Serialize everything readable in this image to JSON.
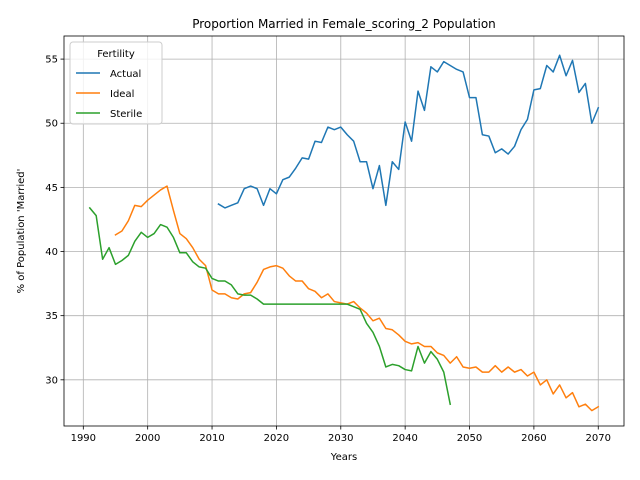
{
  "chart_data": {
    "type": "line",
    "title": "Proportion Married in Female_scoring_2 Population",
    "xlabel": "Years",
    "ylabel": "% of Population 'Married'",
    "xlim": [
      1987,
      2074
    ],
    "ylim": [
      26.4,
      56.8
    ],
    "xticks": [
      1990,
      2000,
      2010,
      2020,
      2030,
      2040,
      2050,
      2060,
      2070
    ],
    "yticks": [
      30,
      35,
      40,
      45,
      50,
      55
    ],
    "grid": true,
    "legend": {
      "title": "Fertility",
      "placement": "top-left"
    },
    "series": [
      {
        "name": "Actual",
        "color": "#1f77b4",
        "x": [
          2011,
          2012,
          2013,
          2014,
          2015,
          2016,
          2017,
          2018,
          2019,
          2020,
          2021,
          2022,
          2023,
          2024,
          2025,
          2026,
          2027,
          2028,
          2029,
          2030,
          2031,
          2032,
          2033,
          2034,
          2035,
          2036,
          2037,
          2038,
          2039,
          2040,
          2041,
          2042,
          2043,
          2044,
          2045,
          2046,
          2047,
          2048,
          2049,
          2050,
          2051,
          2052,
          2053,
          2054,
          2055,
          2056,
          2057,
          2058,
          2059,
          2060,
          2061,
          2062,
          2063,
          2064,
          2065,
          2066,
          2067,
          2068,
          2069,
          2070
        ],
        "y": [
          43.7,
          43.4,
          43.6,
          43.8,
          44.9,
          45.1,
          44.9,
          43.6,
          44.9,
          44.5,
          45.6,
          45.8,
          46.5,
          47.3,
          47.2,
          48.6,
          48.5,
          49.7,
          49.5,
          49.7,
          49.1,
          48.6,
          47.0,
          47.0,
          44.9,
          46.7,
          43.6,
          47.0,
          46.4,
          50.1,
          48.6,
          52.5,
          51.0,
          54.4,
          54.0,
          54.8,
          54.5,
          54.2,
          54.0,
          52.0,
          52.0,
          49.1,
          49.0,
          47.7,
          48.0,
          47.6,
          48.2,
          49.5,
          50.3,
          52.6,
          52.7,
          54.5,
          54.0,
          55.3,
          53.7,
          54.9,
          52.4,
          53.1,
          50.0,
          51.2
        ]
      },
      {
        "name": "Ideal",
        "color": "#ff7f0e",
        "x": [
          1995,
          1996,
          1997,
          1998,
          1999,
          2000,
          2001,
          2002,
          2003,
          2004,
          2005,
          2006,
          2007,
          2008,
          2009,
          2010,
          2011,
          2012,
          2013,
          2014,
          2015,
          2016,
          2017,
          2018,
          2019,
          2020,
          2021,
          2022,
          2023,
          2024,
          2025,
          2026,
          2027,
          2028,
          2029,
          2030,
          2031,
          2032,
          2033,
          2034,
          2035,
          2036,
          2037,
          2038,
          2039,
          2040,
          2041,
          2042,
          2043,
          2044,
          2045,
          2046,
          2047,
          2048,
          2049,
          2050,
          2051,
          2052,
          2053,
          2054,
          2055,
          2056,
          2057,
          2058,
          2059,
          2060,
          2061,
          2062,
          2063,
          2064,
          2065,
          2066,
          2067,
          2068,
          2069,
          2070
        ],
        "y": [
          41.3,
          41.6,
          42.4,
          43.6,
          43.5,
          44.0,
          44.4,
          44.8,
          45.1,
          43.2,
          41.4,
          41.0,
          40.3,
          39.4,
          38.9,
          37.0,
          36.7,
          36.7,
          36.4,
          36.3,
          36.7,
          36.8,
          37.6,
          38.6,
          38.8,
          38.9,
          38.7,
          38.1,
          37.7,
          37.7,
          37.1,
          36.9,
          36.4,
          36.7,
          36.1,
          36.0,
          35.9,
          36.1,
          35.6,
          35.2,
          34.6,
          34.8,
          34.0,
          33.9,
          33.5,
          33.0,
          32.8,
          32.9,
          32.6,
          32.6,
          32.1,
          31.9,
          31.3,
          31.8,
          31.0,
          30.9,
          31.0,
          30.6,
          30.6,
          31.1,
          30.6,
          31.0,
          30.6,
          30.8,
          30.3,
          30.6,
          29.6,
          30.0,
          28.9,
          29.6,
          28.6,
          29.0,
          27.9,
          28.1,
          27.6,
          27.9
        ]
      },
      {
        "name": "Sterile",
        "color": "#2ca02c",
        "x": [
          1991,
          1992,
          1993,
          1994,
          1995,
          1996,
          1997,
          1998,
          1999,
          2000,
          2001,
          2002,
          2003,
          2004,
          2005,
          2006,
          2007,
          2008,
          2009,
          2010,
          2011,
          2012,
          2013,
          2014,
          2015,
          2016,
          2017,
          2018,
          2019,
          2020,
          2021,
          2022,
          2023,
          2024,
          2025,
          2026,
          2027,
          2028,
          2029,
          2030,
          2031,
          2032,
          2033,
          2034,
          2035,
          2036,
          2037,
          2038,
          2039,
          2040,
          2041,
          2042,
          2043,
          2044,
          2045,
          2046,
          2047
        ],
        "y": [
          43.4,
          42.8,
          39.4,
          40.3,
          39.0,
          39.3,
          39.7,
          40.8,
          41.5,
          41.1,
          41.4,
          42.1,
          41.9,
          41.1,
          39.9,
          39.9,
          39.2,
          38.8,
          38.7,
          37.9,
          37.7,
          37.7,
          37.4,
          36.7,
          36.6,
          36.6,
          36.3,
          35.9,
          35.9,
          35.9,
          35.9,
          35.9,
          35.9,
          35.9,
          35.9,
          35.9,
          35.9,
          35.9,
          35.9,
          35.9,
          35.9,
          35.7,
          35.5,
          34.4,
          33.7,
          32.6,
          31.0,
          31.2,
          31.1,
          30.8,
          30.7,
          32.6,
          31.3,
          32.2,
          31.6,
          30.6,
          28.1
        ]
      }
    ]
  }
}
